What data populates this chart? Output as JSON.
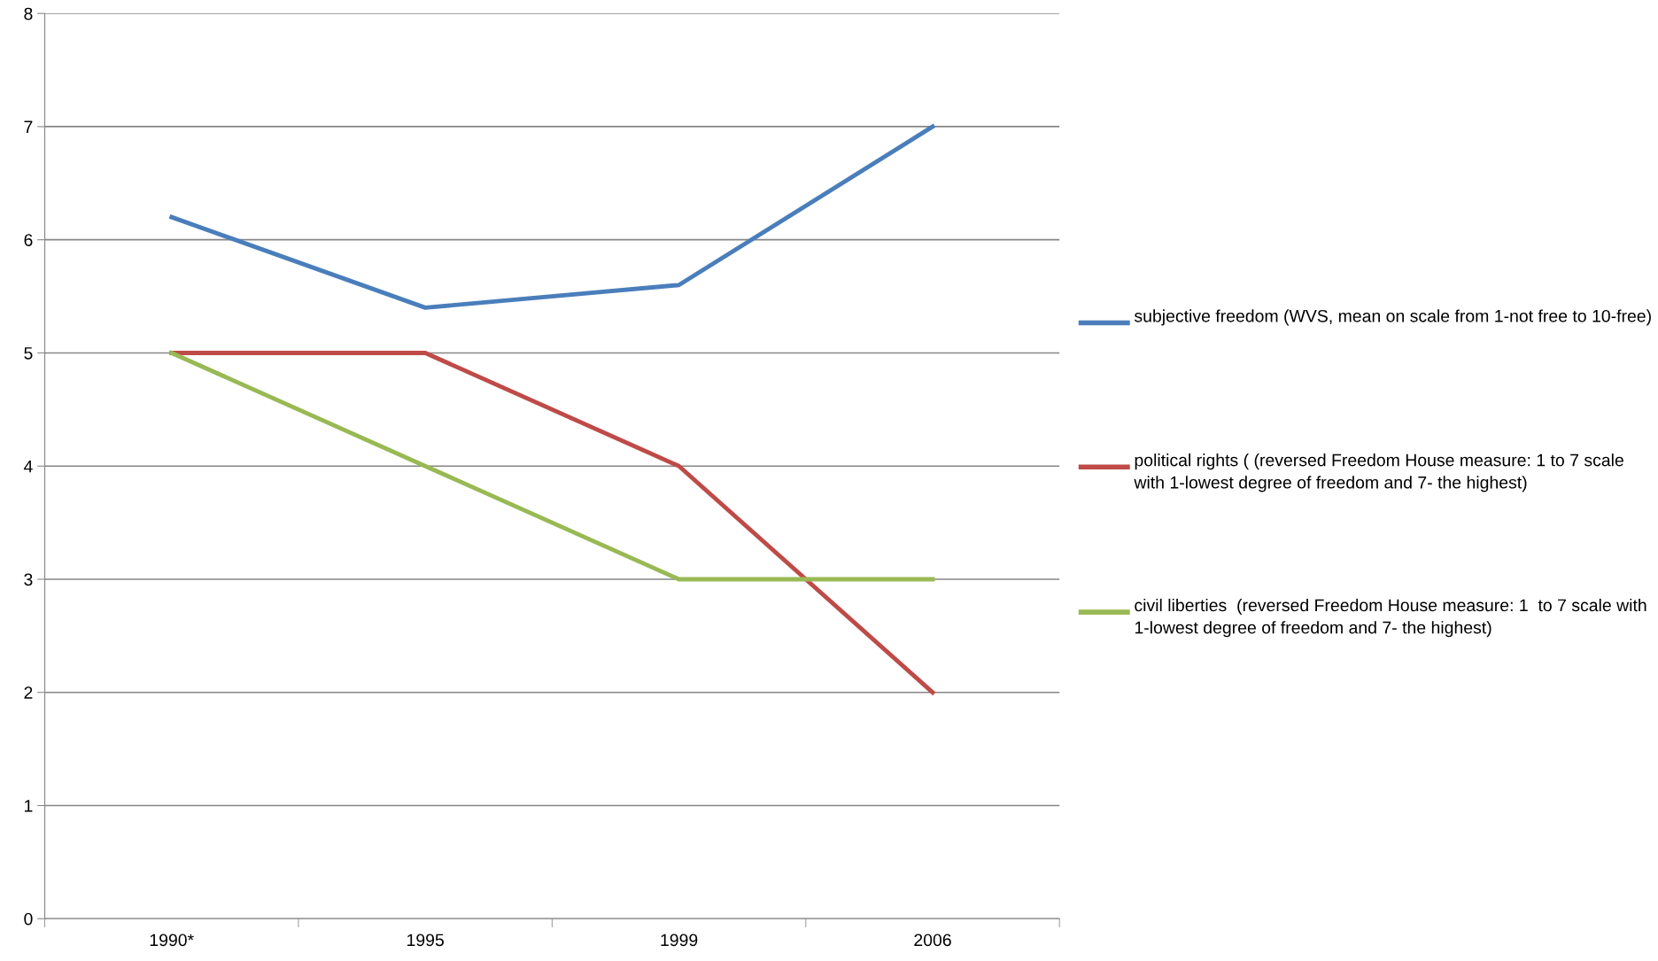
{
  "chart_data": {
    "type": "line",
    "categories": [
      "1990*",
      "1995",
      "1999",
      "2006"
    ],
    "series": [
      {
        "name": "subjective freedom (WVS, mean on scale from 1-not free to 10-free)",
        "color": "#4a7ebb",
        "values": [
          6.2,
          5.4,
          5.6,
          7
        ]
      },
      {
        "name": "political rights ( (reversed Freedom House measure: 1 to 7 scale with 1-lowest degree of freedom and 7- the highest)",
        "color": "#be4b48",
        "values": [
          5,
          5,
          4,
          2
        ]
      },
      {
        "name": "civil liberties  (reversed Freedom House measure: 1  to 7 scale with 1-lowest degree of freedom and 7- the highest)",
        "color": "#98b954",
        "values": [
          5,
          4,
          3,
          3
        ]
      }
    ],
    "ylim": [
      0,
      8
    ],
    "yticks": [
      0,
      1,
      2,
      3,
      4,
      5,
      6,
      7,
      8
    ],
    "grid": "y",
    "legend": "right",
    "marker": "none",
    "line_style": "solid"
  }
}
